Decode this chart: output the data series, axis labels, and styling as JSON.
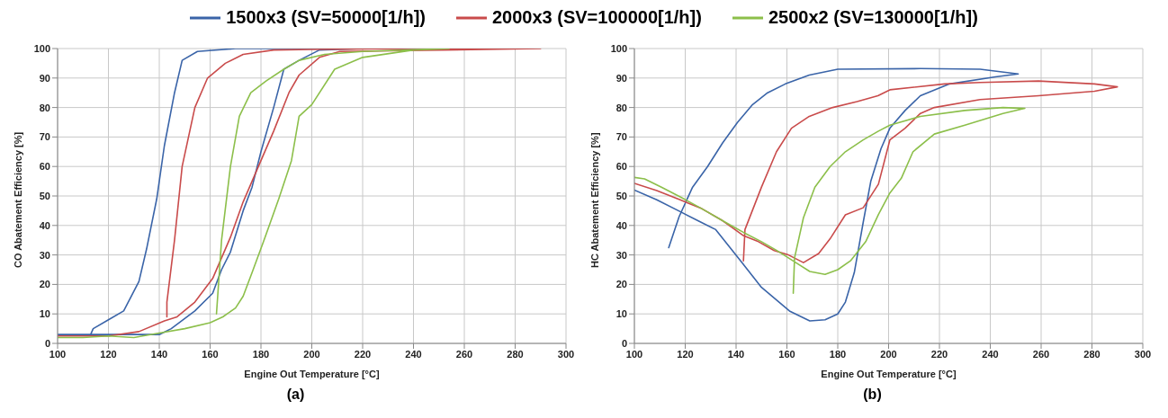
{
  "chart_data": [
    {
      "type": "line",
      "xlabel": "Engine Out Temperature [°C]",
      "ylabel": "CO Abatement Efficiency [%]",
      "xlim": [
        100,
        300
      ],
      "xticks": [
        100,
        120,
        140,
        160,
        180,
        200,
        220,
        240,
        260,
        280,
        300
      ],
      "ylim": [
        0,
        100
      ],
      "yticks": [
        0,
        10,
        20,
        30,
        40,
        50,
        60,
        70,
        80,
        90,
        100
      ],
      "grid": true,
      "legend": "top",
      "annotations": [
        "(a)"
      ],
      "series": [
        {
          "name": "1500x3 (SV=50000[1/h])",
          "color": "#3a64a8",
          "x": [
            113,
            114,
            120,
            126,
            132,
            135,
            139,
            142,
            146,
            149,
            155,
            170,
            200,
            250,
            220,
            203,
            195,
            189,
            185,
            180,
            176.5,
            173,
            168,
            164.5,
            161,
            154,
            144.7,
            140,
            130,
            120,
            110,
            100
          ],
          "values": [
            3,
            5,
            8,
            11,
            21,
            32,
            49,
            67,
            85,
            96,
            99,
            100,
            100,
            100,
            100,
            99.5,
            96,
            93,
            80,
            65,
            53,
            45,
            31,
            25,
            17,
            11,
            5,
            3,
            3,
            3,
            3,
            3
          ]
        },
        {
          "name": "2000x3 (SV=100000[1/h])",
          "color": "#c94b4b",
          "x": [
            143,
            143,
            146,
            149,
            154,
            159,
            166,
            173,
            185,
            200,
            240,
            290,
            211,
            203,
            195,
            191,
            185,
            180,
            173,
            168,
            161,
            154,
            147,
            142,
            132,
            120,
            100
          ],
          "values": [
            9,
            14,
            35,
            60,
            80,
            90,
            95,
            98,
            99.5,
            99.7,
            100,
            100,
            99,
            97,
            91,
            85,
            72,
            62,
            48,
            36,
            22,
            14,
            9,
            7.6,
            4,
            2.5,
            2.5
          ]
        },
        {
          "name": "2500x2 (SV=130000[1/h])",
          "color": "#8cbf4a",
          "x": [
            162.5,
            164.5,
            168,
            171.5,
            176,
            182,
            189,
            195,
            205,
            220,
            254,
            240,
            220,
            209,
            200,
            195,
            192,
            187,
            181,
            176.5,
            173,
            170,
            165,
            160,
            150,
            140,
            130,
            120,
            110,
            100
          ],
          "values": [
            10,
            35,
            60,
            77,
            85,
            89,
            93,
            96,
            98,
            99,
            100,
            99.5,
            97,
            93,
            81,
            77,
            62,
            49,
            34.5,
            24,
            16,
            12,
            9,
            7,
            5,
            3.5,
            2,
            2.5,
            2,
            2
          ]
        }
      ]
    },
    {
      "type": "line",
      "xlabel": "Engine Out Temperature [°C]",
      "ylabel": "HC Abatement Efficiency [%]",
      "xlim": [
        100,
        300
      ],
      "xticks": [
        100,
        120,
        140,
        160,
        180,
        200,
        220,
        240,
        260,
        280,
        300
      ],
      "ylim": [
        0,
        100
      ],
      "yticks": [
        0,
        10,
        20,
        30,
        40,
        50,
        60,
        70,
        80,
        90,
        100
      ],
      "grid": true,
      "annotations": [
        "(b)"
      ],
      "series": [
        {
          "color": "#3a64a8",
          "x": [
            113.5,
            117.6,
            122.9,
            128.8,
            134.7,
            140.6,
            146.5,
            152.4,
            159.4,
            168.8,
            180,
            212.5,
            236,
            251,
            242,
            224,
            212.5,
            206.5,
            200.5,
            197,
            193,
            190,
            186.5,
            183,
            180,
            175,
            169,
            161,
            150,
            141.8,
            132,
            125,
            118,
            108.8,
            100
          ],
          "values": [
            32.5,
            43,
            53,
            60,
            68,
            75,
            81,
            85,
            88,
            91,
            93,
            93.2,
            93,
            91.4,
            90.4,
            88,
            84,
            79,
            73,
            66,
            55,
            41,
            24,
            14,
            10,
            8,
            7.6,
            11,
            19,
            28,
            38.6,
            41.6,
            44.7,
            48.7,
            52
          ]
        },
        {
          "color": "#c94b4b",
          "x": [
            142.9,
            143.5,
            150,
            155.9,
            161.8,
            168.8,
            178,
            187.6,
            195.8,
            200.5,
            222,
            236,
            259,
            281,
            290,
            281,
            259,
            236,
            218,
            212.5,
            206.5,
            200.5,
            196,
            190,
            183,
            177,
            172.5,
            166.5,
            160.6,
            155,
            148.8,
            143,
            134.7,
            126.5,
            118,
            108.8,
            100
          ],
          "values": [
            28,
            38.6,
            53,
            65,
            73,
            77,
            80,
            82,
            84,
            86,
            88,
            88.5,
            89,
            88,
            87,
            85.5,
            84,
            82.7,
            80,
            78,
            73,
            69,
            54,
            46,
            43.6,
            35.5,
            30.5,
            27.4,
            30,
            31.5,
            34.5,
            36.5,
            41.6,
            45.7,
            48.7,
            51.8,
            54.3
          ]
        },
        {
          "color": "#8cbf4a",
          "x": [
            162.5,
            163,
            166.5,
            171,
            177,
            183,
            190,
            196,
            200.5,
            212.5,
            230,
            245,
            253.6,
            245,
            230,
            218,
            209.6,
            205,
            200.5,
            196,
            191,
            185,
            180,
            175,
            169,
            163.5,
            156,
            150,
            143,
            134.7,
            126.5,
            118,
            111,
            104,
            100
          ],
          "values": [
            17,
            29,
            42.6,
            53,
            60,
            65,
            69,
            72,
            74,
            77,
            79,
            80,
            79.7,
            78,
            74,
            71,
            65,
            56,
            51,
            43.7,
            34.5,
            28,
            25,
            23.4,
            24.4,
            27.4,
            31.5,
            34.5,
            37.6,
            41.6,
            45.7,
            49.7,
            52.8,
            55.8,
            56.3
          ]
        }
      ]
    }
  ]
}
